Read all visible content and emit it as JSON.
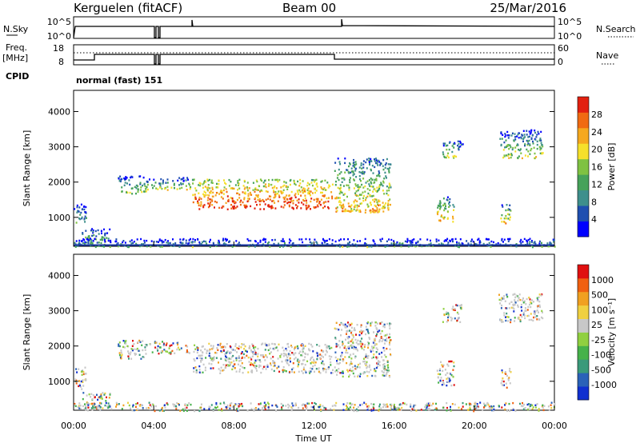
{
  "header": {
    "station": "Kerguelen (fitACF)",
    "beam": "Beam 00",
    "date": "25/Mar/2016"
  },
  "ancillary": {
    "nsky_label": "N.Sky",
    "nsky_ticks": [
      "10^5",
      "10^0"
    ],
    "nsearch_label": "N.Search",
    "nsearch_ticks": [
      "10^5",
      "10^0"
    ],
    "freq_label": "Freq.",
    "freq_unit": "[MHz]",
    "freq_ticks": [
      "18",
      "8"
    ],
    "nave_label": "Nave",
    "nave_ticks": [
      "60",
      "0"
    ],
    "cpid_label": "CPID",
    "cpid_value": "normal (fast) 151"
  },
  "chart_data": [
    {
      "type": "heatmap",
      "name": "power",
      "ylabel": "Slant Range [km]",
      "xlabel": "Time UT",
      "x_ticks": [
        "00:00",
        "04:00",
        "08:00",
        "12:00",
        "16:00",
        "20:00",
        "00:00"
      ],
      "x_range_hours": [
        0,
        24
      ],
      "y_ticks": [
        1000,
        2000,
        3000,
        4000
      ],
      "ylim": [
        180,
        4600
      ],
      "colorbar": {
        "label": "Power [dB]",
        "ticks": [
          4,
          8,
          12,
          16,
          20,
          24,
          28
        ],
        "range": [
          0,
          32
        ],
        "colors": [
          "#0000ff",
          "#1f4fb0",
          "#3e8f8c",
          "#46a25a",
          "#7fc242",
          "#f5e02a",
          "#f5a81e",
          "#f06a12",
          "#e22010"
        ]
      },
      "regions": [
        {
          "t": [
            0.0,
            0.6
          ],
          "r": [
            800,
            1450
          ],
          "level": 0.2
        },
        {
          "t": [
            0.4,
            1.8
          ],
          "r": [
            250,
            700
          ],
          "level": 0.25
        },
        {
          "t": [
            2.2,
            3.6
          ],
          "r": [
            1650,
            2200
          ],
          "level": 0.3
        },
        {
          "t": [
            3.6,
            5.8
          ],
          "r": [
            1800,
            2150
          ],
          "level": 0.3
        },
        {
          "t": [
            5.9,
            12.9
          ],
          "r": [
            1250,
            2100
          ],
          "level": 0.75
        },
        {
          "t": [
            13.0,
            15.8
          ],
          "r": [
            1150,
            2700
          ],
          "level": 0.45
        },
        {
          "t": [
            18.4,
            19.4
          ],
          "r": [
            2700,
            3200
          ],
          "level": 0.3
        },
        {
          "t": [
            18.1,
            19.0
          ],
          "r": [
            900,
            1600
          ],
          "level": 0.45
        },
        {
          "t": [
            21.3,
            21.8
          ],
          "r": [
            800,
            1400
          ],
          "level": 0.45
        },
        {
          "t": [
            21.2,
            23.4
          ],
          "r": [
            2700,
            3500
          ],
          "level": 0.3
        },
        {
          "t": [
            0.0,
            24.0
          ],
          "r": [
            180,
            420
          ],
          "level": 0.15
        }
      ]
    },
    {
      "type": "heatmap",
      "name": "velocity",
      "ylabel": "Slant Range [km]",
      "xlabel": "Time UT",
      "x_ticks": [
        "00:00",
        "04:00",
        "08:00",
        "12:00",
        "16:00",
        "20:00",
        "00:00"
      ],
      "x_range_hours": [
        0,
        24
      ],
      "y_ticks": [
        1000,
        2000,
        3000,
        4000
      ],
      "ylim": [
        180,
        4600
      ],
      "colorbar": {
        "label": "Velocity [m s⁻¹]",
        "ticks": [
          1000,
          500,
          100,
          25,
          -25,
          -100,
          -500,
          -1000
        ],
        "colors": [
          "#1030d0",
          "#2a62b8",
          "#3a9a7a",
          "#46b24a",
          "#90d040",
          "#c8c8c8",
          "#f0d040",
          "#f0a020",
          "#f06010",
          "#e01010"
        ]
      },
      "regions": [
        {
          "t": [
            0.0,
            0.6
          ],
          "r": [
            800,
            1450
          ],
          "level": 0.2
        },
        {
          "t": [
            0.4,
            1.8
          ],
          "r": [
            250,
            700
          ],
          "level": 0.25
        },
        {
          "t": [
            2.2,
            3.6
          ],
          "r": [
            1650,
            2200
          ],
          "level": 0.3
        },
        {
          "t": [
            3.6,
            5.8
          ],
          "r": [
            1800,
            2150
          ],
          "level": 0.3
        },
        {
          "t": [
            5.9,
            12.9
          ],
          "r": [
            1250,
            2100
          ],
          "level": 0.5
        },
        {
          "t": [
            13.0,
            15.8
          ],
          "r": [
            1150,
            2700
          ],
          "level": 0.5
        },
        {
          "t": [
            18.4,
            19.4
          ],
          "r": [
            2700,
            3200
          ],
          "level": 0.45
        },
        {
          "t": [
            18.1,
            19.0
          ],
          "r": [
            900,
            1600
          ],
          "level": 0.45
        },
        {
          "t": [
            21.3,
            21.8
          ],
          "r": [
            800,
            1400
          ],
          "level": 0.45
        },
        {
          "t": [
            21.2,
            23.4
          ],
          "r": [
            2700,
            3500
          ],
          "level": 0.6
        },
        {
          "t": [
            0.0,
            24.0
          ],
          "r": [
            180,
            420
          ],
          "level": 0.3
        }
      ]
    }
  ]
}
